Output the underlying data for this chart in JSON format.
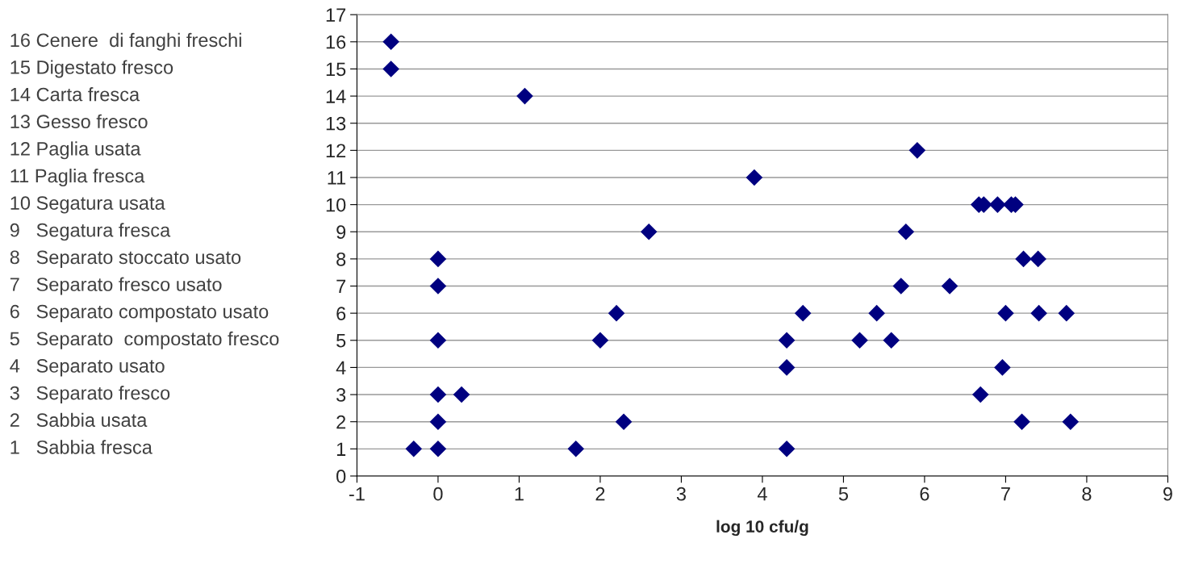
{
  "chart_data": {
    "type": "scatter",
    "xlabel": "log 10 cfu/g",
    "x": [
      -0.58,
      -0.58,
      1.07,
      5.91,
      3.9,
      6.67,
      6.73,
      6.9,
      7.07,
      7.12,
      2.6,
      5.77,
      0,
      7.22,
      7.4,
      0,
      5.71,
      6.31,
      2.2,
      4.5,
      5.41,
      7.0,
      7.41,
      7.75,
      0,
      2.0,
      4.3,
      5.2,
      5.59,
      4.3,
      6.96,
      0,
      0.29,
      6.69,
      0,
      2.29,
      7.2,
      7.8,
      -0.3,
      0,
      1.7,
      4.3
    ],
    "values": [
      16,
      15,
      14,
      12,
      11,
      10,
      10,
      10,
      10,
      10,
      9,
      9,
      8,
      8,
      8,
      7,
      7,
      7,
      6,
      6,
      6,
      6,
      6,
      6,
      5,
      5,
      5,
      5,
      5,
      4,
      4,
      3,
      3,
      3,
      2,
      2,
      2,
      2,
      1,
      1,
      1,
      1
    ],
    "color": "#000080",
    "marker": "diamond",
    "xlim": [
      -1,
      9
    ],
    "xticks": [
      -1,
      0,
      1,
      2,
      3,
      4,
      5,
      6,
      7,
      8,
      9
    ],
    "ylim": [
      0,
      17
    ],
    "yticks": [
      0,
      1,
      2,
      3,
      4,
      5,
      6,
      7,
      8,
      9,
      10,
      11,
      12,
      13,
      14,
      15,
      16,
      17
    ],
    "grid": "y",
    "annotations": [
      "16 Cenere  di fanghi freschi",
      "15 Digestato fresco",
      "14 Carta fresca",
      "13 Gesso fresco",
      "12 Paglia usata",
      "11 Paglia fresca",
      "10 Segatura usata",
      "9   Segatura fresca",
      "8   Separato stoccato usato",
      "7   Separato fresco usato",
      "6   Separato compostato usato",
      "5   Separato  compostato fresco",
      "4   Separato usato",
      "3   Separato fresco",
      "2   Sabbia usata",
      "1   Sabbia fresca"
    ]
  }
}
